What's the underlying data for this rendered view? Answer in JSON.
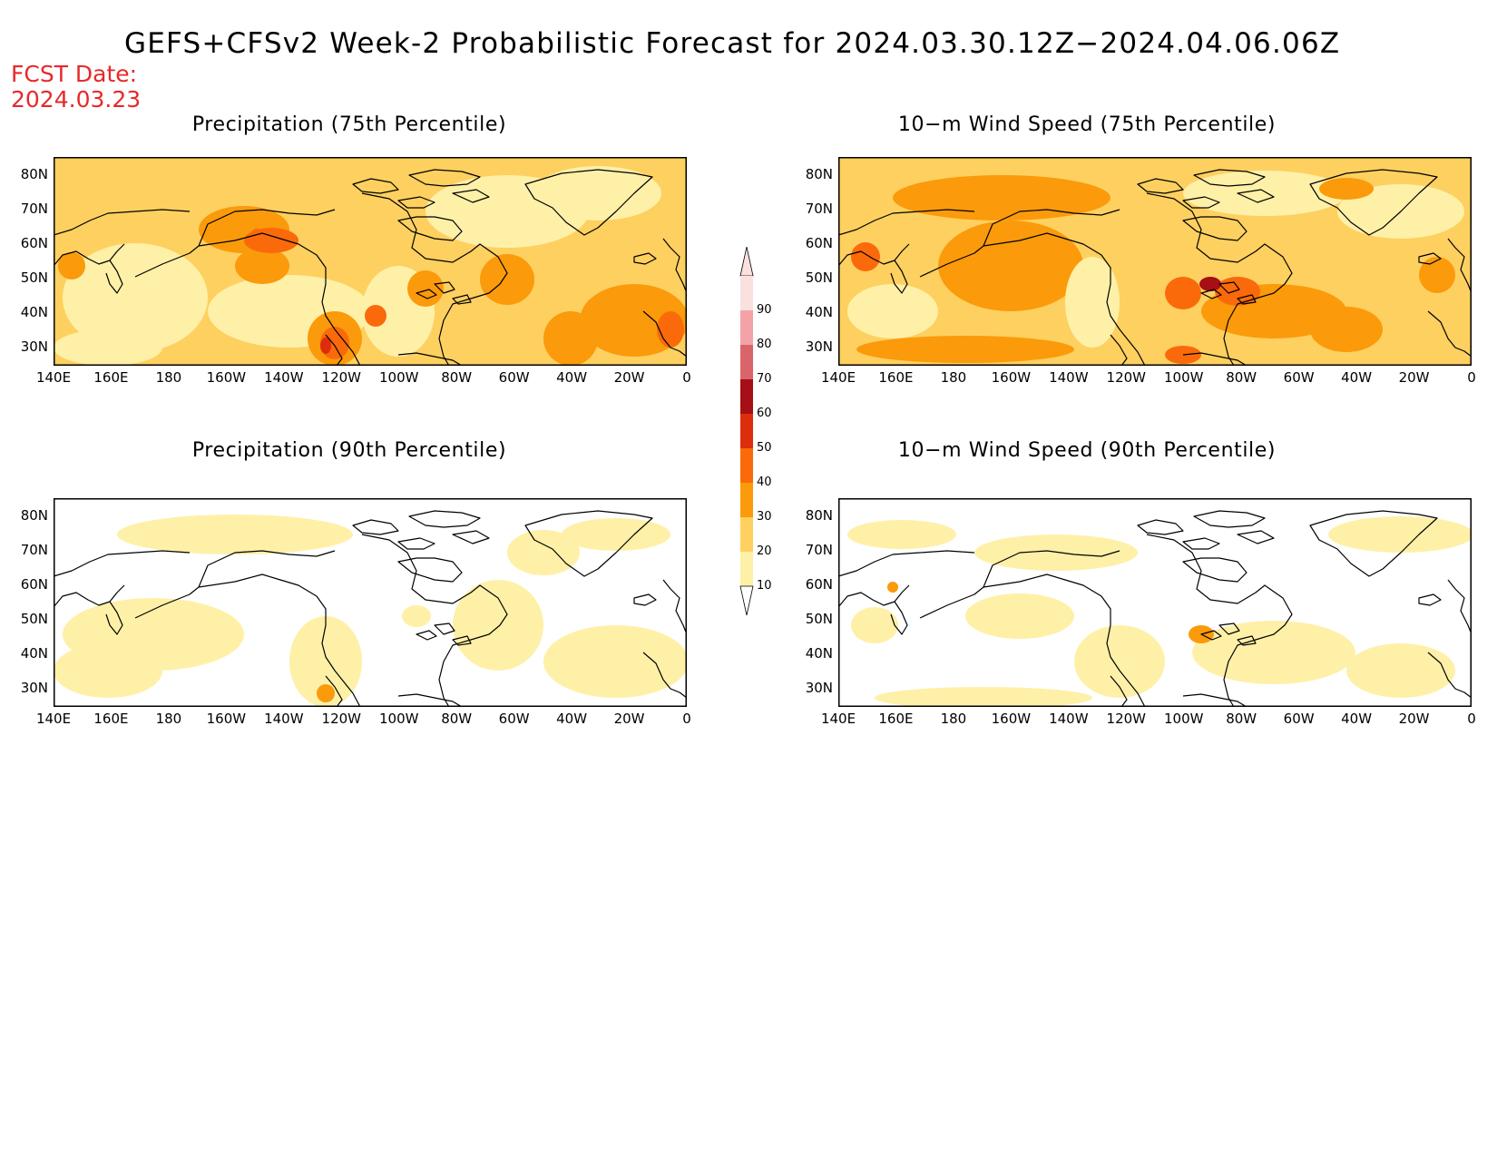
{
  "title": "GEFS+CFSv2 Week-2 Probabilistic Forecast for 2024.03.30.12Z−2024.04.06.06Z",
  "fcst_date": {
    "line1": "FCST Date:",
    "line2": "2024.03.23",
    "color": "#e8282b"
  },
  "lat_labels": [
    "80N",
    "70N",
    "60N",
    "50N",
    "40N",
    "30N"
  ],
  "lon_labels": [
    "140E",
    "160E",
    "180",
    "160W",
    "140W",
    "120W",
    "100W",
    "80W",
    "60W",
    "40W",
    "20W",
    "0"
  ],
  "panels": [
    {
      "id": "precip75",
      "title": "Precipitation (75th Percentile)"
    },
    {
      "id": "wind75",
      "title": "10−m Wind Speed (75th Percentile)"
    },
    {
      "id": "precip90",
      "title": "Precipitation (90th Percentile)"
    },
    {
      "id": "wind90",
      "title": "10−m Wind Speed (90th Percentile)"
    }
  ],
  "colorbar": {
    "levels": [
      "90",
      "80",
      "70",
      "60",
      "50",
      "40",
      "30",
      "20",
      "10"
    ],
    "colors": [
      "#fbe0e0",
      "#f3a3a8",
      "#d9646a",
      "#a50f15",
      "#de2d0c",
      "#fa6a0a",
      "#fb9a0a",
      "#fdd060",
      "#fff0a8"
    ]
  }
}
